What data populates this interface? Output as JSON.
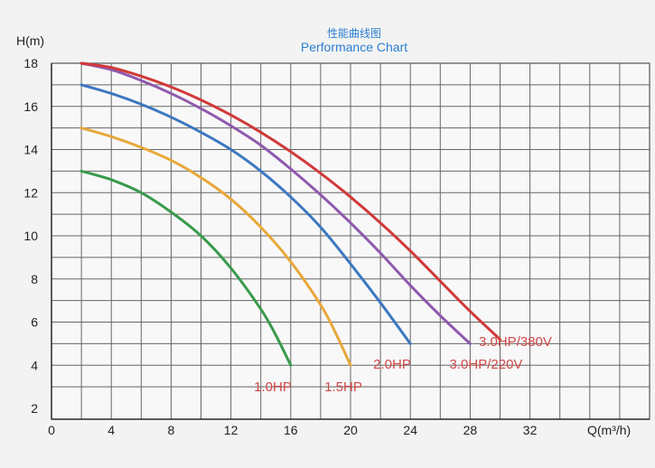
{
  "title_cn": "性能曲线图",
  "title": "Performance Chart",
  "chart_data": {
    "type": "line",
    "xlabel": "Q(m³/h)",
    "ylabel": "H(m)",
    "xlim": [
      0,
      40
    ],
    "ylim": [
      1.5,
      18
    ],
    "xticks": [
      0,
      4,
      8,
      12,
      16,
      20,
      24,
      28,
      32
    ],
    "yticks": [
      2,
      4,
      6,
      8,
      10,
      12,
      14,
      16,
      18
    ],
    "grid": true,
    "series": [
      {
        "name": "1.0HP",
        "color": "#3a9a4c",
        "x": [
          2,
          4,
          6,
          8,
          10,
          12,
          14,
          15,
          16
        ],
        "y": [
          13,
          12.6,
          12.0,
          11.1,
          10.0,
          8.5,
          6.6,
          5.4,
          4.0
        ]
      },
      {
        "name": "1.5HP",
        "color": "#e8a83a",
        "x": [
          2,
          4,
          6,
          8,
          10,
          12,
          14,
          16,
          18,
          19,
          20
        ],
        "y": [
          15,
          14.6,
          14.1,
          13.5,
          12.7,
          11.7,
          10.4,
          8.8,
          6.8,
          5.5,
          4.0
        ]
      },
      {
        "name": "2.0HP",
        "color": "#3c78c0",
        "x": [
          2,
          4,
          6,
          8,
          10,
          12,
          14,
          16,
          18,
          20,
          22,
          24
        ],
        "y": [
          17,
          16.6,
          16.1,
          15.5,
          14.8,
          14.0,
          13.0,
          11.8,
          10.4,
          8.7,
          6.9,
          5.0
        ]
      },
      {
        "name": "3.0HP/220V",
        "color": "#8f59ad",
        "x": [
          2,
          4,
          6,
          8,
          10,
          12,
          14,
          16,
          18,
          20,
          22,
          24,
          26,
          28
        ],
        "y": [
          18,
          17.7,
          17.2,
          16.6,
          15.9,
          15.1,
          14.2,
          13.1,
          11.9,
          10.6,
          9.2,
          7.7,
          6.3,
          5.0
        ]
      },
      {
        "name": "3.0HP/380V",
        "color": "#d03a3a",
        "x": [
          2,
          4,
          6,
          8,
          10,
          12,
          14,
          16,
          18,
          20,
          22,
          24,
          26,
          28,
          30
        ],
        "y": [
          18,
          17.8,
          17.4,
          16.9,
          16.3,
          15.6,
          14.8,
          13.9,
          12.9,
          11.8,
          10.6,
          9.3,
          7.9,
          6.5,
          5.2
        ]
      }
    ]
  }
}
